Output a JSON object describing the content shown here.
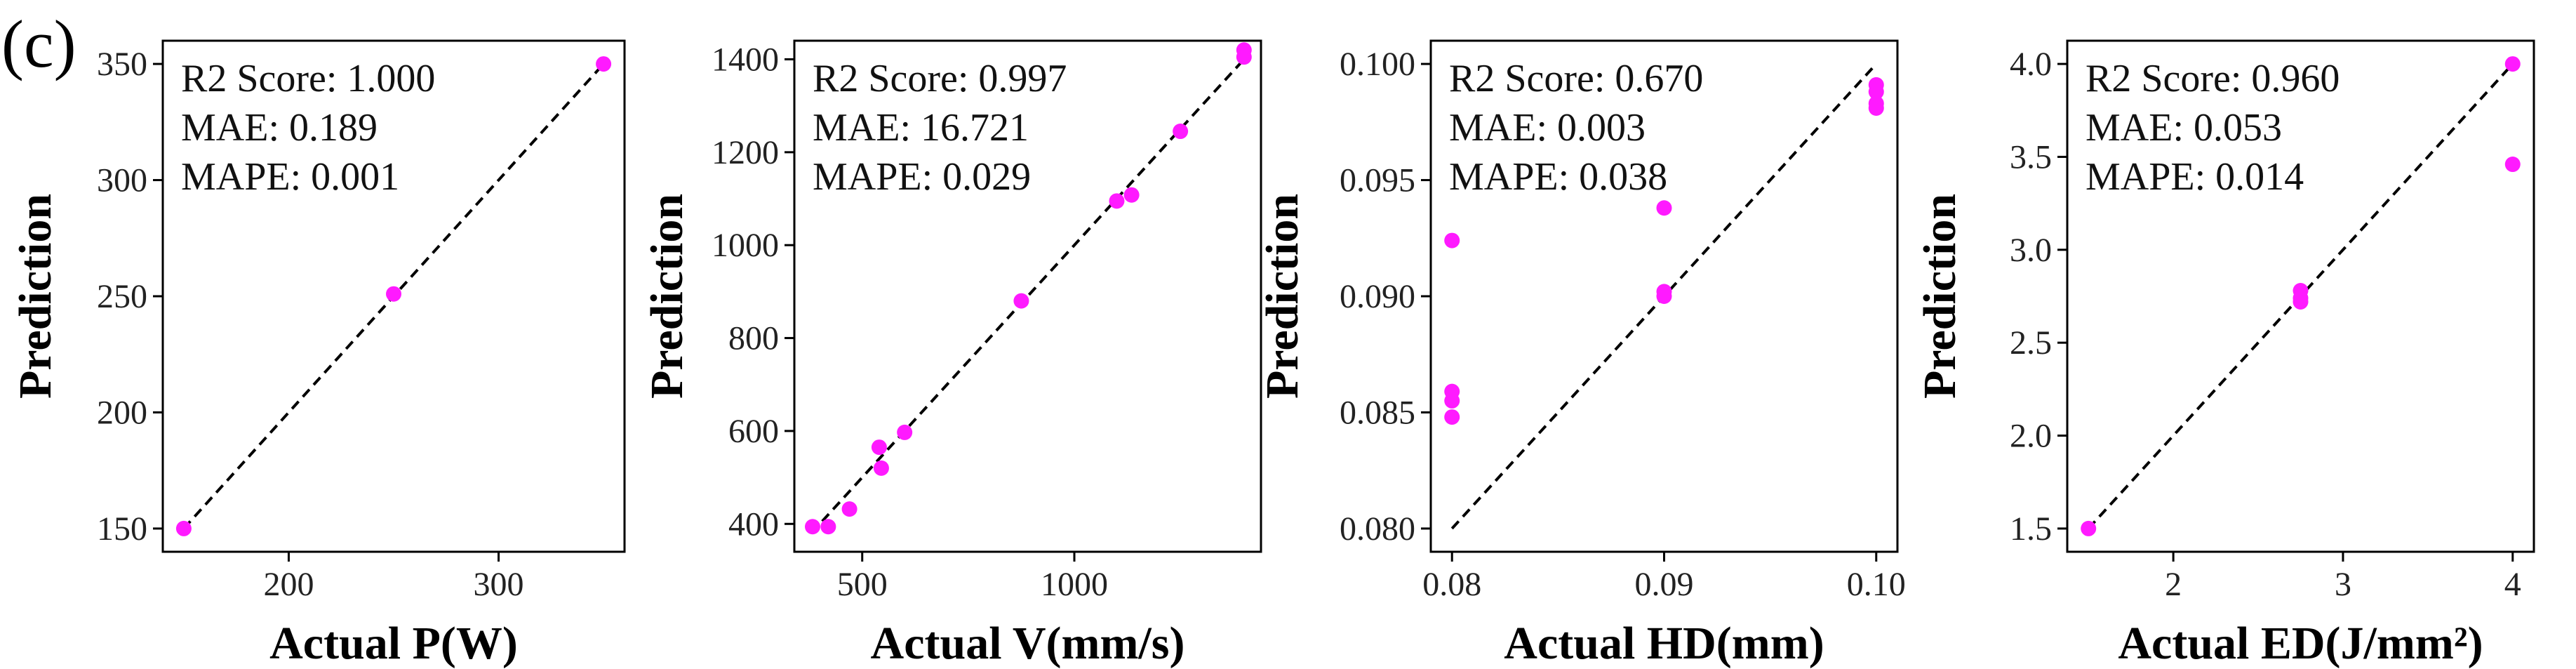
{
  "figure": {
    "panel_label": "(c)",
    "point_color": "#ff1aff"
  },
  "chart_data": [
    {
      "type": "scatter",
      "title": "",
      "xlabel": "Actual P(W)",
      "ylabel": "Prediction",
      "xlim": [
        140,
        360
      ],
      "ylim": [
        140,
        360
      ],
      "xticks": [
        200,
        300
      ],
      "yticks": [
        150,
        200,
        250,
        300,
        350
      ],
      "ideal_line": [
        [
          150,
          150
        ],
        [
          350,
          350
        ]
      ],
      "metrics": [
        "R2 Score: 1.000",
        "MAE: 0.189",
        "MAPE: 0.001"
      ],
      "points": [
        [
          150,
          150
        ],
        [
          250,
          251
        ],
        [
          350,
          350
        ]
      ]
    },
    {
      "type": "scatter",
      "title": "",
      "xlabel": "Actual V(mm/s)",
      "ylabel": "Prediction",
      "xlim": [
        340,
        1440
      ],
      "ylim": [
        340,
        1440
      ],
      "xticks": [
        500,
        1000
      ],
      "yticks": [
        400,
        600,
        800,
        1000,
        1200,
        1400
      ],
      "ideal_line": [
        [
          380,
          380
        ],
        [
          1400,
          1400
        ]
      ],
      "metrics": [
        "R2 Score: 0.997",
        "MAE: 16.721",
        "MAPE: 0.029"
      ],
      "points": [
        [
          383,
          394
        ],
        [
          420,
          394
        ],
        [
          470,
          432
        ],
        [
          540,
          565
        ],
        [
          545,
          520
        ],
        [
          600,
          597
        ],
        [
          875,
          880
        ],
        [
          1100,
          1095
        ],
        [
          1135,
          1108
        ],
        [
          1250,
          1245
        ],
        [
          1400,
          1420
        ],
        [
          1400,
          1405
        ]
      ]
    },
    {
      "type": "scatter",
      "title": "",
      "xlabel": "Actual HD(mm)",
      "ylabel": "Prediction",
      "xlim": [
        0.079,
        0.101
      ],
      "ylim": [
        0.079,
        0.101
      ],
      "xticks": [
        0.08,
        0.09,
        0.1
      ],
      "xtick_labels": [
        "0.08",
        "0.09",
        "0.10"
      ],
      "yticks": [
        0.08,
        0.085,
        0.09,
        0.095,
        0.1
      ],
      "ytick_labels": [
        "0.080",
        "0.085",
        "0.090",
        "0.095",
        "0.100"
      ],
      "ideal_line": [
        [
          0.08,
          0.08
        ],
        [
          0.1,
          0.1
        ]
      ],
      "metrics": [
        "R2 Score: 0.670",
        "MAE: 0.003",
        "MAPE: 0.038"
      ],
      "points": [
        [
          0.08,
          0.0924
        ],
        [
          0.08,
          0.0859
        ],
        [
          0.08,
          0.0855
        ],
        [
          0.08,
          0.0848
        ],
        [
          0.09,
          0.0938
        ],
        [
          0.09,
          0.0902
        ],
        [
          0.09,
          0.09
        ],
        [
          0.1,
          0.0991
        ],
        [
          0.1,
          0.0988
        ],
        [
          0.1,
          0.0983
        ],
        [
          0.1,
          0.0981
        ]
      ]
    },
    {
      "type": "scatter",
      "title": "",
      "xlabel": "Actual ED(J/mm²)",
      "ylabel": "Prediction",
      "xlim": [
        1.375,
        4.125
      ],
      "ylim": [
        1.375,
        4.125
      ],
      "xticks": [
        2,
        3,
        4
      ],
      "yticks": [
        1.5,
        2.0,
        2.5,
        3.0,
        3.5,
        4.0
      ],
      "ytick_labels": [
        "1.5",
        "2.0",
        "2.5",
        "3.0",
        "3.5",
        "4.0"
      ],
      "ideal_line": [
        [
          1.5,
          1.5
        ],
        [
          4.0,
          4.0
        ]
      ],
      "metrics": [
        "R2 Score: 0.960",
        "MAE: 0.053",
        "MAPE: 0.014"
      ],
      "points": [
        [
          1.5,
          1.5
        ],
        [
          2.75,
          2.78
        ],
        [
          2.75,
          2.74
        ],
        [
          2.75,
          2.72
        ],
        [
          4.0,
          4.0
        ],
        [
          4.0,
          3.46
        ]
      ]
    }
  ]
}
